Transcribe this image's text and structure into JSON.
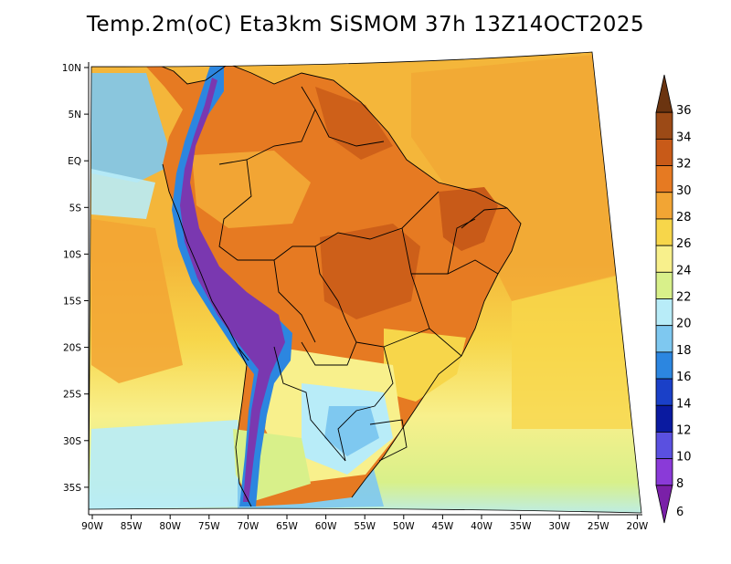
{
  "title": "Temp.2m(oC) Eta3km SiSMOM 37h 13Z14OCT2025",
  "map": {
    "lat_labels": [
      "10N",
      "5N",
      "EQ",
      "5S",
      "10S",
      "15S",
      "20S",
      "25S",
      "30S",
      "35S"
    ],
    "lon_labels": [
      "90W",
      "85W",
      "80W",
      "75W",
      "70W",
      "65W",
      "60W",
      "55W",
      "50W",
      "45W",
      "40W",
      "35W",
      "30W",
      "25W",
      "20W"
    ],
    "colors": {
      "ocean_warm": "#f4b63a",
      "ocean_mid": "#f7d64a",
      "ocean_cool": "#f8f08c",
      "ocean_cold": "#d8f08a",
      "land_hot": "#e67a22",
      "land_very_hot": "#c85a18",
      "land_mild": "#f2a534",
      "andes_cold": "#7a38b0",
      "andes_cool": "#2c6ee0",
      "cold_sea": "#7ec8f0",
      "border": "#000000"
    }
  },
  "colorbar": {
    "labels": [
      "36",
      "34",
      "32",
      "30",
      "28",
      "26",
      "24",
      "22",
      "20",
      "18",
      "16",
      "14",
      "12",
      "10",
      "8",
      "6"
    ],
    "colors": [
      "#6b3410",
      "#9c4a16",
      "#c85a18",
      "#e67a22",
      "#f2a534",
      "#f7d64a",
      "#f8f08c",
      "#d8f08a",
      "#b8ecf8",
      "#7ec8f0",
      "#2c86e0",
      "#1a40c8",
      "#0a1aa0",
      "#5a50e0",
      "#8a3ad8",
      "#7a20a8"
    ]
  }
}
